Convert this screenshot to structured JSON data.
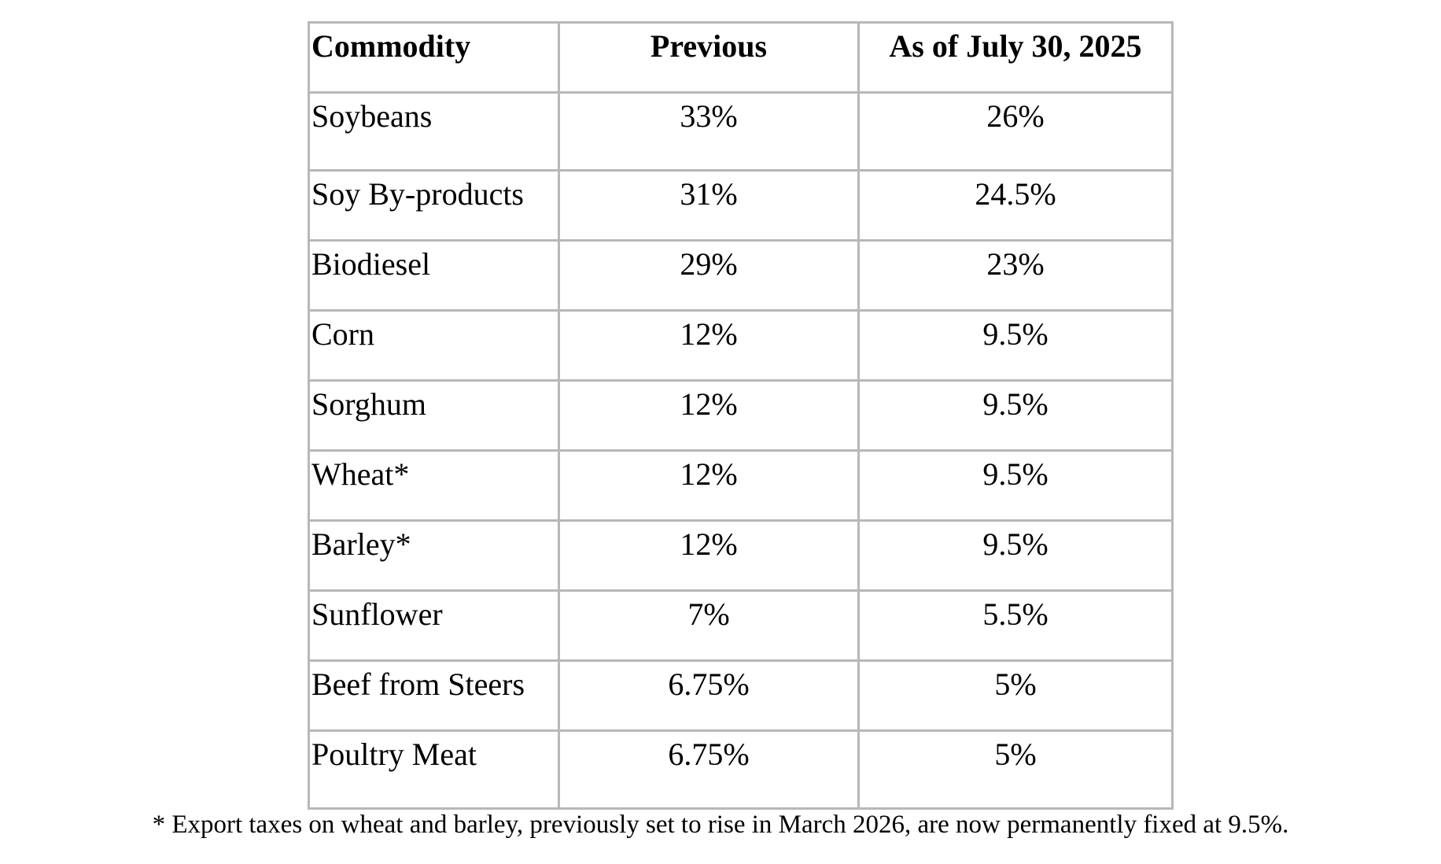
{
  "table": {
    "headers": [
      "Commodity",
      "Previous",
      "As of July 30, 2025"
    ],
    "rows": [
      [
        "Soybeans",
        "33%",
        "26%"
      ],
      [
        "Soy By-products",
        "31%",
        "24.5%"
      ],
      [
        "Biodiesel",
        "29%",
        "23%"
      ],
      [
        "Corn",
        "12%",
        "9.5%"
      ],
      [
        "Sorghum",
        "12%",
        "9.5%"
      ],
      [
        "Wheat*",
        "12%",
        "9.5%"
      ],
      [
        "Barley*",
        "12%",
        "9.5%"
      ],
      [
        "Sunflower",
        "7%",
        "5.5%"
      ],
      [
        "Beef from Steers",
        "6.75%",
        "5%"
      ],
      [
        "Poultry Meat",
        "6.75%",
        "5%"
      ]
    ]
  },
  "footnote": "* Export taxes on wheat and barley, previously set to rise in March 2026, are now permanently fixed at 9.5%."
}
